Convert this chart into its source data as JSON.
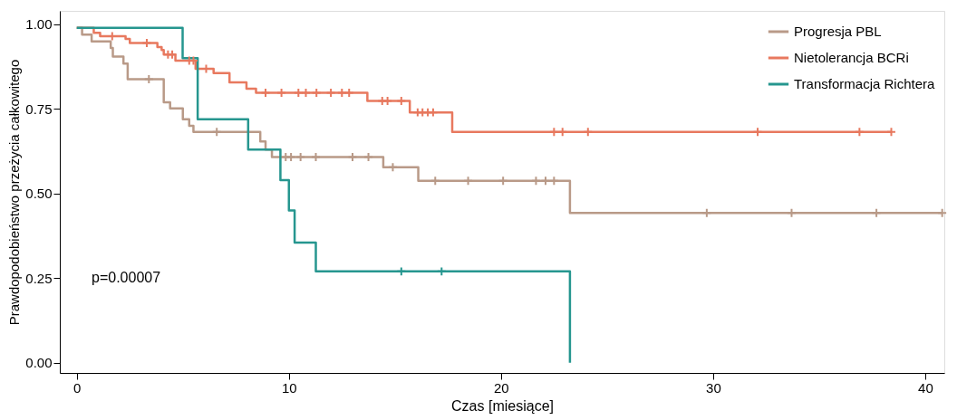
{
  "chart_data": {
    "type": "step",
    "xlabel": "Czas [miesiące]",
    "ylabel": "Prawdopodobieństwo przeżycia całkowitego",
    "xlim": [
      -0.8,
      40.9
    ],
    "xticks": [
      0,
      10,
      20,
      30,
      40
    ],
    "ylim": [
      -0.03,
      1.04
    ],
    "yticks": [
      {
        "value": 0,
        "label": "0.00"
      },
      {
        "value": 0.25,
        "label": "0.25"
      },
      {
        "value": 0.5,
        "label": "0.50"
      },
      {
        "value": 0.75,
        "label": "0.75"
      },
      {
        "value": 1,
        "label": "1.00"
      }
    ],
    "grid": false,
    "legend": "top right",
    "line_style": "solid",
    "annotations": [
      "p=0.00007"
    ],
    "series": [
      {
        "name": "Progresja PBL",
        "color": "#b99a88",
        "type": "step",
        "x": [
          0,
          0.25,
          0.7,
          1.6,
          1.7,
          2.2,
          2.4,
          4.1,
          4.4,
          5.0,
          5.3,
          5.5,
          8.65,
          8.9,
          9.2,
          14.45,
          16.1,
          23.25,
          40.8
        ],
        "values": [
          0.99,
          0.97,
          0.95,
          0.93,
          0.905,
          0.884,
          0.838,
          0.77,
          0.752,
          0.72,
          0.7,
          0.682,
          0.654,
          0.63,
          0.608,
          0.578,
          0.538,
          0.443,
          0.443
        ]
      },
      {
        "name": "Nietolerancja BCRi",
        "color": "#e8795f",
        "type": "step",
        "x": [
          0,
          0.8,
          1.1,
          2.3,
          2.5,
          3.8,
          4.0,
          4.1,
          4.65,
          5.6,
          6.45,
          7.2,
          8.0,
          8.45,
          13.7,
          15.7,
          17.7,
          38.4
        ],
        "values": [
          0.99,
          0.975,
          0.965,
          0.957,
          0.945,
          0.933,
          0.924,
          0.911,
          0.893,
          0.869,
          0.856,
          0.829,
          0.81,
          0.798,
          0.774,
          0.74,
          0.682,
          0.682
        ]
      },
      {
        "name": "Transformacja Richtera",
        "color": "#26968f",
        "type": "step",
        "x": [
          0,
          4.99,
          5.7,
          8.08,
          9.6,
          10.0,
          10.27,
          11.27,
          23.25
        ],
        "values": [
          0.99,
          0.9,
          0.72,
          0.63,
          0.54,
          0.45,
          0.355,
          0.27,
          0
        ]
      },
      {
        "color": "#b89987",
        "type": "scatter",
        "marker": "cross",
        "x": [
          3.4,
          6.6,
          9.85,
          10.1,
          10.55,
          11.27,
          13.0,
          13.75,
          14.9,
          16.9,
          18.45,
          20.1,
          21.65,
          22.1,
          22.5,
          29.7,
          33.7,
          37.7,
          40.8
        ],
        "values": [
          0.838,
          0.682,
          0.608,
          0.608,
          0.608,
          0.608,
          0.608,
          0.608,
          0.578,
          0.538,
          0.538,
          0.538,
          0.538,
          0.538,
          0.538,
          0.443,
          0.443,
          0.443,
          0.443
        ]
      },
      {
        "color": "#e7785e",
        "type": "scatter",
        "marker": "cross",
        "x": [
          1.67,
          3.3,
          4.3,
          4.5,
          5.3,
          5.5,
          6.1,
          8.9,
          9.65,
          10.45,
          10.8,
          11.3,
          11.98,
          12.5,
          12.84,
          14.4,
          14.65,
          15.3,
          16.07,
          16.3,
          16.55,
          16.8,
          22.5,
          22.9,
          24.1,
          32.1,
          36.9,
          38.4
        ],
        "values": [
          0.965,
          0.945,
          0.911,
          0.911,
          0.893,
          0.893,
          0.869,
          0.798,
          0.798,
          0.798,
          0.798,
          0.798,
          0.798,
          0.798,
          0.798,
          0.774,
          0.774,
          0.774,
          0.74,
          0.74,
          0.74,
          0.74,
          0.682,
          0.682,
          0.682,
          0.682,
          0.682,
          0.682
        ]
      },
      {
        "color": "#26968f",
        "type": "scatter",
        "marker": "cross",
        "x": [
          15.3,
          17.2
        ],
        "values": [
          0.27,
          0.27
        ]
      }
    ]
  }
}
